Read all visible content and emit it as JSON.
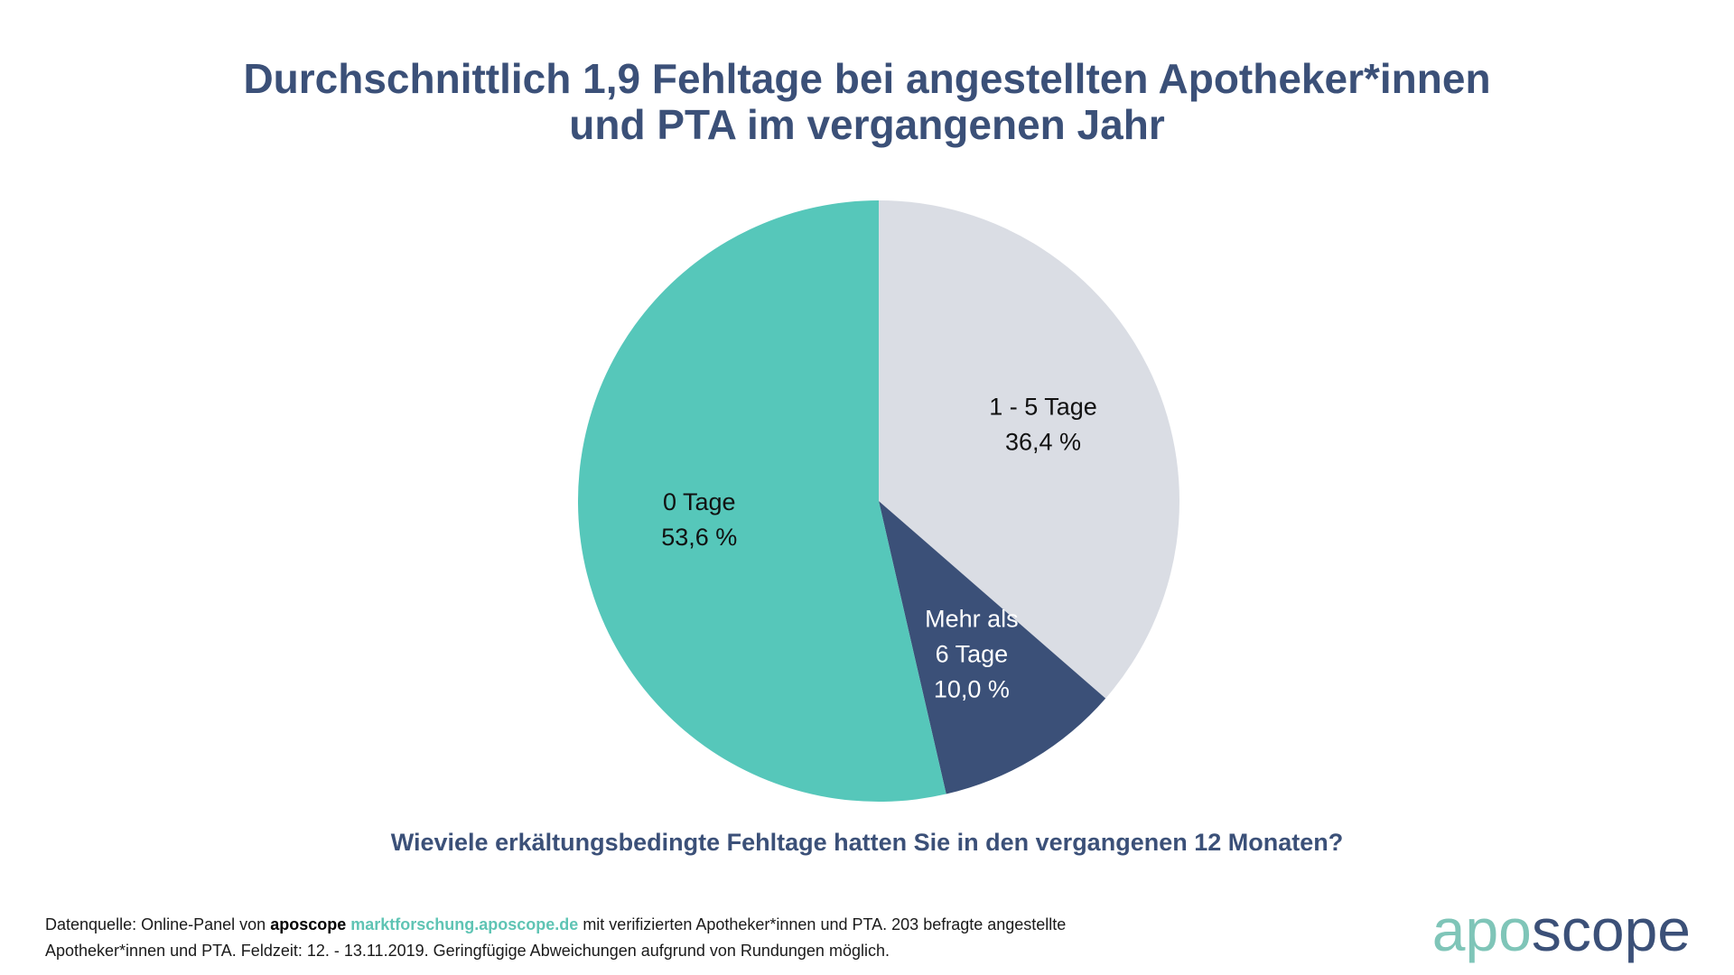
{
  "title": {
    "line1": "Durchschnittlich 1,9 Fehltage bei angestellten Apotheker*innen",
    "line2": "und PTA im vergangenen Jahr"
  },
  "question": "Wieviele erkältungsbedingte Fehltage hatten Sie in den vergangenen 12 Monaten?",
  "footnote": {
    "prefix": "Datenquelle: Online-Panel von",
    "brand": "aposcope",
    "url": "marktforschung.aposcope.de",
    "line1_rest": "mit verifizierten Apotheker*innen und PTA. 203 befragte angestellte",
    "line2": "Apotheker*innen und PTA. Feldzeit: 12. - 13.11.2019. Geringfügige Abweichungen aufgrund von Rundungen möglich."
  },
  "logo": {
    "part1": "apo",
    "part2": "scope"
  },
  "chart_data": {
    "type": "pie",
    "start_angle_deg": 0,
    "direction": "clockwise",
    "slices": [
      {
        "label_lines": [
          "1 - 5 Tage"
        ],
        "value_label": "36,4 %",
        "value": 36.4,
        "color": "#dadde4",
        "text_color": "#111111"
      },
      {
        "label_lines": [
          "Mehr als",
          "6 Tage"
        ],
        "value_label": "10,0 %",
        "value": 10.0,
        "color": "#3b5078",
        "text_color": "#ffffff"
      },
      {
        "label_lines": [
          "0 Tage"
        ],
        "value_label": "53,6 %",
        "value": 53.6,
        "color": "#56c7ba",
        "text_color": "#111111"
      }
    ]
  }
}
